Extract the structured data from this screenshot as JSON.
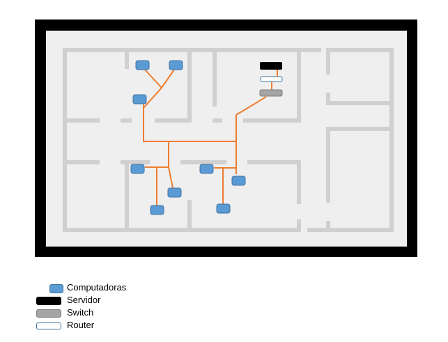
{
  "colors": {
    "outer_wall": "#000000",
    "floor": "#efefef",
    "inner_wall": "#d0d0d0",
    "cable": "#ed7d31",
    "computer": "#5b9bd5",
    "computer_border": "#41719c",
    "server": "#000000",
    "switch": "#a5a5a5",
    "router": "#ffffff"
  },
  "legend": [
    {
      "key": "computer",
      "label": "Computadoras"
    },
    {
      "key": "server",
      "label": "Servidor"
    },
    {
      "key": "switch",
      "label": "Switch"
    },
    {
      "key": "router",
      "label": "Router"
    }
  ],
  "node_counts": {
    "computers": 9,
    "servers": 1,
    "switches": 1,
    "routers": 1
  }
}
